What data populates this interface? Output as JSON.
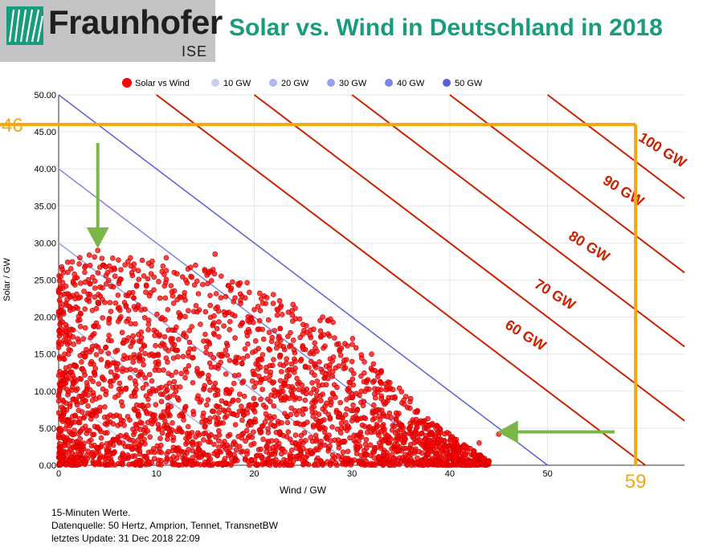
{
  "header": {
    "logo_name": "Fraunhofer",
    "logo_sub": "ISE",
    "title": "Solar vs. Wind in Deutschland in 2018"
  },
  "colors": {
    "brand_green": "#179c7d",
    "scatter": "#ff0000",
    "orange": "#f5a70e",
    "red_line": "#cc2200",
    "arrow_green": "#7ab648",
    "blue_series": [
      "#c8cdf2",
      "#b0b6ee",
      "#9aa0ea",
      "#7d84e4",
      "#5a61dc"
    ]
  },
  "footer": {
    "line1": "15-Minuten Werte.",
    "line2": "Datenquelle: 50 Hertz, Amprion, Tennet, TransnetBW",
    "line3": "letztes Update: 31 Dec 2018 22:09"
  },
  "chart_data": {
    "type": "scatter",
    "xlabel": "Wind / GW",
    "ylabel": "Solar / GW",
    "xlim": [
      0,
      64
    ],
    "ylim": [
      0,
      50
    ],
    "xticks": [
      0,
      10,
      20,
      30,
      40,
      50
    ],
    "yticks": [
      "0.00",
      "5.00",
      "10.00",
      "15.00",
      "20.00",
      "25.00",
      "30.00",
      "35.00",
      "40.00",
      "45.00",
      "50.00"
    ],
    "grid": true,
    "legend_position": "top",
    "series": [
      {
        "name": "Solar vs Wind",
        "kind": "points",
        "color": "#ff0000",
        "points": [
          [
            2,
            2
          ],
          [
            3,
            8
          ],
          [
            1,
            15
          ],
          [
            4,
            22
          ],
          [
            6,
            12
          ],
          [
            8,
            5
          ],
          [
            10,
            18
          ],
          [
            5,
            26
          ],
          [
            4,
            29
          ],
          [
            12,
            10
          ],
          [
            15,
            6
          ],
          [
            18,
            14
          ],
          [
            22,
            8
          ],
          [
            25,
            3
          ],
          [
            28,
            12
          ],
          [
            30,
            6
          ],
          [
            33,
            9
          ],
          [
            35,
            4
          ],
          [
            38,
            2
          ],
          [
            40,
            1
          ],
          [
            44,
            0.5
          ],
          [
            45,
            4.2
          ],
          [
            43,
            3
          ],
          [
            11,
            28
          ],
          [
            14,
            27
          ],
          [
            16,
            28.5
          ],
          [
            13,
            25
          ],
          [
            20,
            21
          ],
          [
            25,
            19
          ],
          [
            27,
            20
          ],
          [
            23,
            16
          ],
          [
            32,
            15
          ],
          [
            30,
            14
          ],
          [
            36,
            9
          ],
          [
            0.5,
            26
          ]
        ]
      },
      {
        "name": "10 GW",
        "kind": "line",
        "sum": 10,
        "color": "#c8cdf2"
      },
      {
        "name": "20 GW",
        "kind": "line",
        "sum": 20,
        "color": "#b0b6ee"
      },
      {
        "name": "30 GW",
        "kind": "line",
        "sum": 30,
        "color": "#9aa0ea"
      },
      {
        "name": "40 GW",
        "kind": "line",
        "sum": 40,
        "color": "#7d84e4"
      },
      {
        "name": "50 GW",
        "kind": "line",
        "sum": 50,
        "color": "#5a61dc"
      }
    ],
    "total_lines": [
      {
        "label": "60 GW",
        "sum": 60
      },
      {
        "label": "70 GW",
        "sum": 70
      },
      {
        "label": "80 GW",
        "sum": 80
      },
      {
        "label": "90 GW",
        "sum": 90
      },
      {
        "label": "100 GW",
        "sum": 100
      }
    ],
    "annotations": {
      "max_solar": 46,
      "max_wind": 59,
      "max_solar_label": "46",
      "max_wind_label": "59",
      "arrow_solar_peak": [
        4,
        29.5
      ],
      "arrow_wind_peak": [
        45,
        4.5
      ]
    }
  }
}
